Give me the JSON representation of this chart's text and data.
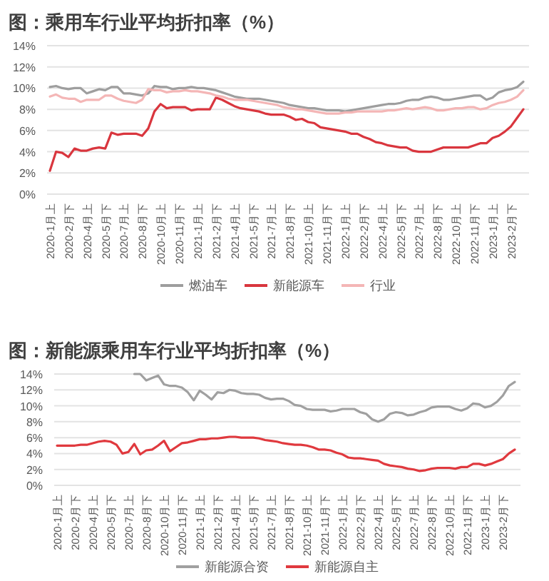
{
  "chart_data": [
    {
      "type": "line",
      "title": "图：乘用车行业平均折扣率（%）",
      "categories": [
        "2020-1月上",
        null,
        null,
        "2020-2月下",
        null,
        null,
        "2020-4月上",
        null,
        null,
        "2020-5月下",
        null,
        null,
        "2020-7月上",
        null,
        null,
        "2020-8月下",
        null,
        null,
        "2020-10月上",
        null,
        null,
        "2020-11月下",
        null,
        null,
        "2021-1月上",
        null,
        null,
        "2021-2月下",
        null,
        null,
        "2021-4月上",
        null,
        null,
        "2021-5月下",
        null,
        null,
        "2021-7月上",
        null,
        null,
        "2021-8月下",
        null,
        null,
        "2021-10月上",
        null,
        null,
        "2021-11月下",
        null,
        null,
        "2022-1月上",
        null,
        null,
        "2022-2月下",
        null,
        null,
        "2022-4月上",
        null,
        null,
        "2022-5月下",
        null,
        null,
        "2022-7月上",
        null,
        null,
        "2022-8月下",
        null,
        null,
        "2022-10月上",
        null,
        null,
        "2022-11月下",
        null,
        null,
        "2023-1月上",
        null,
        null,
        "2023-2月下",
        null,
        null
      ],
      "series": [
        {
          "name": "燃油车",
          "color": "#9e9e9e",
          "values": [
            10.1,
            10.2,
            10.0,
            9.9,
            10.0,
            10.0,
            9.5,
            9.7,
            9.9,
            9.8,
            10.1,
            10.1,
            9.5,
            9.5,
            9.4,
            9.3,
            9.5,
            10.2,
            10.1,
            10.1,
            9.9,
            10.0,
            10.0,
            10.1,
            10.0,
            10.0,
            9.9,
            9.8,
            9.6,
            9.4,
            9.2,
            9.1,
            9.0,
            9.0,
            9.0,
            8.9,
            8.8,
            8.7,
            8.6,
            8.4,
            8.3,
            8.2,
            8.1,
            8.1,
            8.0,
            7.9,
            7.9,
            7.9,
            7.8,
            7.9,
            8.0,
            8.1,
            8.2,
            8.3,
            8.4,
            8.5,
            8.5,
            8.6,
            8.8,
            8.9,
            8.9,
            9.1,
            9.2,
            9.1,
            8.9,
            8.9,
            9.0,
            9.1,
            9.2,
            9.3,
            9.3,
            8.9,
            9.1,
            9.6,
            9.8,
            9.9,
            10.1,
            10.6
          ]
        },
        {
          "name": "新能源车",
          "color": "#d9363e",
          "values": [
            2.2,
            4.0,
            3.9,
            3.5,
            4.3,
            4.1,
            4.1,
            4.3,
            4.4,
            4.3,
            5.8,
            5.6,
            5.7,
            5.7,
            5.7,
            5.5,
            6.2,
            7.8,
            8.5,
            8.1,
            8.2,
            8.2,
            8.2,
            7.9,
            8.0,
            8.0,
            8.0,
            9.1,
            8.9,
            8.6,
            8.3,
            8.1,
            8.0,
            7.9,
            7.8,
            7.6,
            7.5,
            7.5,
            7.5,
            7.3,
            7.0,
            7.1,
            6.8,
            6.7,
            6.3,
            6.2,
            6.1,
            6.0,
            5.9,
            5.7,
            5.7,
            5.4,
            5.2,
            4.9,
            4.8,
            4.6,
            4.5,
            4.4,
            4.4,
            4.1,
            4.0,
            4.0,
            4.0,
            4.2,
            4.4,
            4.4,
            4.4,
            4.4,
            4.4,
            4.6,
            4.8,
            4.8,
            5.3,
            5.5,
            5.9,
            6.4,
            7.2,
            8.0
          ]
        },
        {
          "name": "行业",
          "color": "#f4b6b6",
          "values": [
            9.2,
            9.4,
            9.1,
            9.0,
            9.0,
            8.7,
            8.9,
            8.9,
            8.9,
            9.3,
            9.3,
            9.0,
            8.8,
            8.7,
            8.6,
            8.9,
            9.9,
            9.8,
            9.8,
            9.6,
            9.7,
            9.7,
            9.8,
            9.7,
            9.7,
            9.6,
            9.5,
            9.3,
            9.2,
            9.0,
            8.9,
            8.9,
            8.9,
            8.8,
            8.7,
            8.6,
            8.5,
            8.4,
            8.2,
            8.1,
            8.0,
            8.0,
            7.9,
            7.8,
            7.7,
            7.6,
            7.6,
            7.6,
            7.7,
            7.7,
            7.8,
            7.8,
            7.8,
            7.8,
            7.8,
            7.9,
            7.9,
            8.0,
            8.1,
            8.0,
            8.1,
            8.2,
            8.1,
            7.9,
            7.9,
            8.0,
            8.1,
            8.1,
            8.2,
            8.2,
            8.0,
            8.1,
            8.4,
            8.6,
            8.7,
            8.9,
            9.2,
            9.8
          ]
        }
      ],
      "ylim": [
        0,
        14
      ],
      "yticks": [
        {
          "value": 0,
          "label": "0%"
        },
        {
          "value": 2,
          "label": "2%"
        },
        {
          "value": 4,
          "label": "4%"
        },
        {
          "value": 6,
          "label": "6%"
        },
        {
          "value": 8,
          "label": "8%"
        },
        {
          "value": 10,
          "label": "10%"
        },
        {
          "value": 12,
          "label": "12%"
        },
        {
          "value": 14,
          "label": "14%"
        }
      ],
      "grid": "y",
      "legend": "bottom"
    },
    {
      "type": "line",
      "title": "图：新能源乘用车行业平均折扣率（%）",
      "categories": [
        "2020-1月上",
        null,
        null,
        "2020-2月下",
        null,
        null,
        "2020-4月上",
        null,
        null,
        "2020-5月下",
        null,
        null,
        "2020-7月上",
        null,
        null,
        "2020-8月下",
        null,
        null,
        "2020-10月上",
        null,
        null,
        "2020-11月下",
        null,
        null,
        "2021-1月上",
        null,
        null,
        "2021-2月下",
        null,
        null,
        "2021-4月上",
        null,
        null,
        "2021-5月下",
        null,
        null,
        "2021-7月上",
        null,
        null,
        "2021-8月下",
        null,
        null,
        "2021-10月上",
        null,
        null,
        "2021-11月下",
        null,
        null,
        "2022-1月上",
        null,
        null,
        "2022-2月下",
        null,
        null,
        "2022-4月上",
        null,
        null,
        "2022-5月下",
        null,
        null,
        "2022-7月上",
        null,
        null,
        "2022-8月下",
        null,
        null,
        "2022-10月上",
        null,
        null,
        "2022-11月下",
        null,
        null,
        "2023-1月上",
        null,
        null,
        "2023-2月下",
        null,
        null
      ],
      "series": [
        {
          "name": "新能源合资",
          "color": "#a0a0a0",
          "values": [
            null,
            null,
            null,
            null,
            null,
            null,
            null,
            null,
            null,
            null,
            null,
            null,
            null,
            14.0,
            14.0,
            13.2,
            13.5,
            13.8,
            12.7,
            12.5,
            12.5,
            12.3,
            11.7,
            10.7,
            11.9,
            11.4,
            10.8,
            11.7,
            11.6,
            12.0,
            11.9,
            11.6,
            11.5,
            11.5,
            11.4,
            11.0,
            10.8,
            10.9,
            10.9,
            10.6,
            10.1,
            10.0,
            9.6,
            9.5,
            9.5,
            9.5,
            9.3,
            9.4,
            9.6,
            9.6,
            9.6,
            9.2,
            9.0,
            8.3,
            8.0,
            8.3,
            9.0,
            9.2,
            9.1,
            8.8,
            8.9,
            9.2,
            9.4,
            9.8,
            9.9,
            9.9,
            9.9,
            9.6,
            9.4,
            9.7,
            10.3,
            10.2,
            9.8,
            10.0,
            10.5,
            11.3,
            12.5,
            13.0
          ]
        },
        {
          "name": "新能源自主",
          "color": "#e0393e",
          "values": [
            5.0,
            5.0,
            5.0,
            5.0,
            5.1,
            5.1,
            5.3,
            5.5,
            5.6,
            5.5,
            5.1,
            4.0,
            4.2,
            5.2,
            3.9,
            4.4,
            4.5,
            5.0,
            5.6,
            4.3,
            4.8,
            5.3,
            5.4,
            5.6,
            5.8,
            5.8,
            5.9,
            5.9,
            6.0,
            6.1,
            6.1,
            6.0,
            6.0,
            6.0,
            5.9,
            5.7,
            5.6,
            5.5,
            5.3,
            5.2,
            5.1,
            5.1,
            5.0,
            4.8,
            4.5,
            4.5,
            4.4,
            4.1,
            3.9,
            3.5,
            3.4,
            3.4,
            3.3,
            3.2,
            3.1,
            2.7,
            2.5,
            2.4,
            2.3,
            2.1,
            2.0,
            1.8,
            1.9,
            2.1,
            2.2,
            2.2,
            2.2,
            2.1,
            2.3,
            2.3,
            2.7,
            2.7,
            2.5,
            2.7,
            3.0,
            3.3,
            4.0,
            4.5
          ]
        }
      ],
      "ylim": [
        0,
        14
      ],
      "yticks": [
        {
          "value": 0,
          "label": "0%"
        },
        {
          "value": 2,
          "label": "2%"
        },
        {
          "value": 4,
          "label": "4%"
        },
        {
          "value": 6,
          "label": "6%"
        },
        {
          "value": 8,
          "label": "8%"
        },
        {
          "value": 10,
          "label": "10%"
        },
        {
          "value": 12,
          "label": "12%"
        },
        {
          "value": 14,
          "label": "14%"
        }
      ],
      "grid": "y",
      "legend": "bottom"
    }
  ]
}
